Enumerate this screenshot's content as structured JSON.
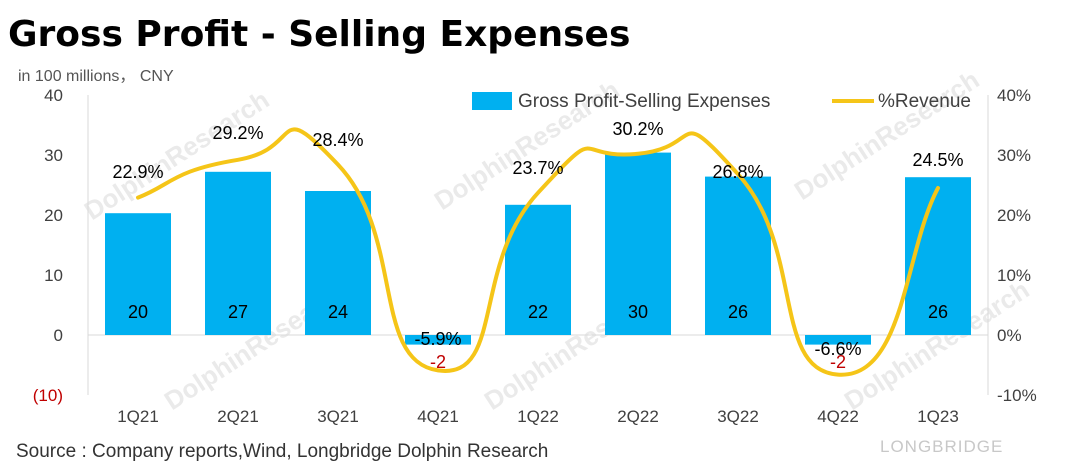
{
  "title": "Gross Profit - Selling Expenses",
  "unit_label": "in 100 millions， CNY",
  "source": "Source : Company reports,Wind, Longbridge Dolphin Research",
  "watermark": {
    "text": "DolphinResearch",
    "brand": "LONGBRIDGE"
  },
  "colors": {
    "bar": "#00b0f0",
    "line": "#f5c518",
    "negative_label": "#c00000",
    "axis": "#d9d9d9"
  },
  "chart_data": {
    "type": "bar",
    "categories": [
      "1Q21",
      "2Q21",
      "3Q21",
      "4Q21",
      "1Q22",
      "2Q22",
      "3Q22",
      "4Q22",
      "1Q23"
    ],
    "series": [
      {
        "name": "Gross Profit-Selling Expenses",
        "type": "bar",
        "axis": "left",
        "values": [
          20.3,
          27.2,
          24.0,
          -1.6,
          21.7,
          30.4,
          26.4,
          -1.6,
          26.3
        ],
        "labels": [
          "20",
          "27",
          "24",
          "-2",
          "22",
          "30",
          "26",
          "-2",
          "26"
        ]
      },
      {
        "name": "%Revenue",
        "type": "line",
        "axis": "right",
        "values": [
          22.9,
          29.2,
          28.4,
          -5.9,
          23.7,
          30.2,
          26.8,
          -6.6,
          24.5
        ],
        "labels": [
          "22.9%",
          "29.2%",
          "28.4%",
          "-5.9%",
          "23.7%",
          "30.2%",
          "26.8%",
          "-6.6%",
          "24.5%"
        ]
      }
    ],
    "y_left": {
      "range": [
        -10,
        40
      ],
      "ticks": [
        "(10)",
        "0",
        "10",
        "20",
        "30",
        "40"
      ],
      "tick_values": [
        -10,
        0,
        10,
        20,
        30,
        40
      ]
    },
    "y_right": {
      "range": [
        -10,
        40
      ],
      "ticks": [
        "-10%",
        "0%",
        "10%",
        "20%",
        "30%",
        "40%"
      ],
      "tick_values": [
        -10,
        0,
        10,
        20,
        30,
        40
      ]
    },
    "legend": {
      "position": "top-right"
    },
    "grid": false
  }
}
